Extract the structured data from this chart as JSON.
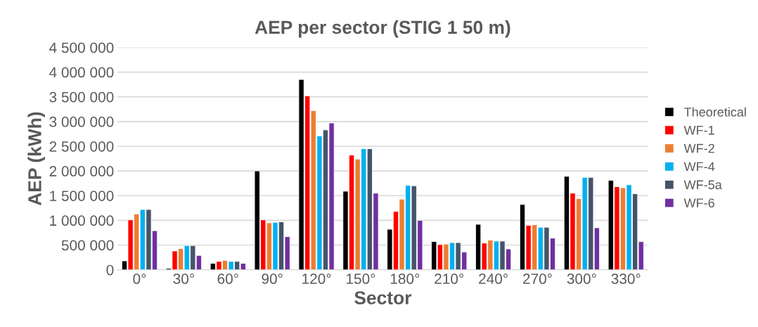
{
  "chart_data": {
    "type": "bar",
    "title": "AEP per sector (STIG 1 50 m)",
    "xlabel": "Sector",
    "ylabel": "AEP (kWh)",
    "categories": [
      "0°",
      "30°",
      "60°",
      "90°",
      "120°",
      "150°",
      "180°",
      "210°",
      "240°",
      "270°",
      "300°",
      "330°"
    ],
    "series": [
      {
        "name": "Theoretical",
        "color": "#000000",
        "values": [
          180000,
          25000,
          130000,
          2000000,
          3850000,
          1590000,
          820000,
          570000,
          920000,
          1320000,
          1890000,
          1810000
        ]
      },
      {
        "name": "WF-1",
        "color": "#ff0000",
        "values": [
          1010000,
          380000,
          170000,
          1010000,
          3520000,
          2320000,
          1180000,
          510000,
          540000,
          900000,
          1550000,
          1680000
        ]
      },
      {
        "name": "WF-2",
        "color": "#ed7d31",
        "values": [
          1130000,
          430000,
          190000,
          950000,
          3220000,
          2240000,
          1430000,
          520000,
          600000,
          910000,
          1440000,
          1660000
        ]
      },
      {
        "name": "WF-4",
        "color": "#00b0f0",
        "values": [
          1220000,
          490000,
          170000,
          960000,
          2710000,
          2450000,
          1710000,
          550000,
          580000,
          860000,
          1870000,
          1720000
        ]
      },
      {
        "name": "WF-5a",
        "color": "#44546a",
        "values": [
          1220000,
          490000,
          170000,
          970000,
          2830000,
          2450000,
          1700000,
          550000,
          580000,
          860000,
          1870000,
          1540000
        ]
      },
      {
        "name": "WF-6",
        "color": "#7030a0",
        "values": [
          790000,
          290000,
          130000,
          670000,
          2970000,
          1550000,
          1000000,
          360000,
          420000,
          640000,
          850000,
          570000
        ]
      }
    ],
    "ylim": [
      0,
      4500000
    ],
    "yticks": [
      {
        "value": 0,
        "label": "0"
      },
      {
        "value": 500000,
        "label": "500 000"
      },
      {
        "value": 1000000,
        "label": "1 000 000"
      },
      {
        "value": 1500000,
        "label": "1 500 000"
      },
      {
        "value": 2000000,
        "label": "2 000 000"
      },
      {
        "value": 2500000,
        "label": "2 500 000"
      },
      {
        "value": 3000000,
        "label": "3 000 000"
      },
      {
        "value": 3500000,
        "label": "3 500 000"
      },
      {
        "value": 4000000,
        "label": "4 000 000"
      },
      {
        "value": 4500000,
        "label": "4 500 000"
      }
    ],
    "grid": "y",
    "legend": "right"
  }
}
